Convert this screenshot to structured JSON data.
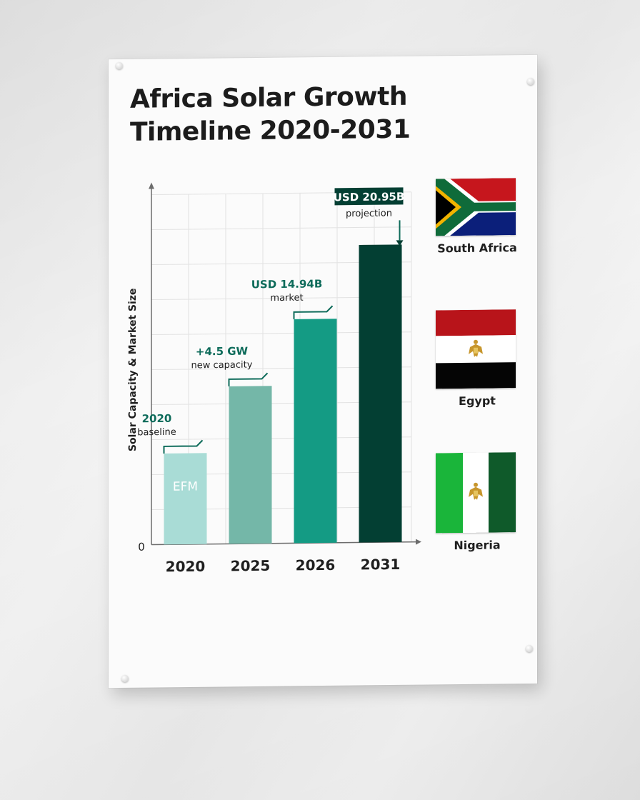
{
  "poster": {
    "title_line1": "Africa Solar Growth",
    "title_line2": "Timeline 2020-2031"
  },
  "chart_data": {
    "type": "bar",
    "ylabel": "Solar Capacity & Market Size",
    "y_origin_label": "0",
    "categories": [
      "2020",
      "2025",
      "2026",
      "2031"
    ],
    "values": [
      26,
      45,
      64,
      85
    ],
    "bar_colors": [
      "#a9dcd6",
      "#74b7a8",
      "#149b84",
      "#033f33"
    ],
    "bar_inner_labels": [
      "EFM",
      "",
      "",
      ""
    ],
    "annotations": [
      {
        "category": "2020",
        "headline": "2020",
        "subtext": "baseline",
        "boxed": false
      },
      {
        "category": "2025",
        "headline": "+4.5 GW",
        "subtext": "new capacity",
        "boxed": false
      },
      {
        "category": "2026",
        "headline": "USD 14.94B",
        "subtext": "market",
        "boxed": false
      },
      {
        "category": "2031",
        "headline": "USD 20.95B",
        "subtext": "projection",
        "boxed": true
      }
    ],
    "ylim": [
      0,
      100
    ],
    "grid": true
  },
  "flags": [
    {
      "name": "South Africa"
    },
    {
      "name": "Egypt"
    },
    {
      "name": "Nigeria"
    }
  ],
  "colors": {
    "annotation_green": "#0d6b5a",
    "dark_green": "#033f33",
    "flag_red": "#b8141a",
    "flag_green": "#0f6b3a",
    "flag_blue": "#0b1f7a"
  }
}
